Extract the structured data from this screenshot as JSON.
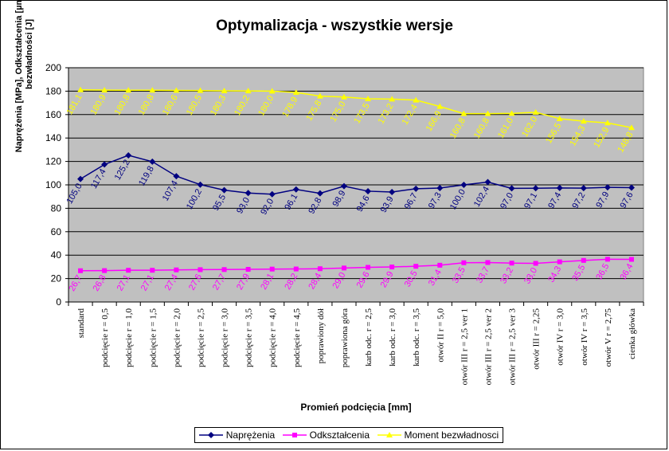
{
  "chart_data": {
    "type": "line",
    "title": "Optymalizacja - wszystkie wersje",
    "xlabel": "Promień podcięcia [mm]",
    "ylabel_lines": [
      "Naprężenia [MPa], Odkształcenia [µm], Moment",
      "bezwładności [J]"
    ],
    "ylim": [
      0,
      200
    ],
    "yticks": [
      "0",
      "20",
      "40",
      "60",
      "80",
      "100",
      "120",
      "140",
      "160",
      "180",
      "200"
    ],
    "grid": true,
    "legend_position": "bottom",
    "categories": [
      "standard",
      "podcięcie r = 0,5",
      "podcięcie r = 1,0",
      "podcięcie r = 1,5",
      "podcięcie r = 2,0",
      "podcięcie r = 2,5",
      "podcięcie r = 3,0",
      "podcięcie r = 3,5",
      "podcięcie r = 4,0",
      "podcięcie r = 4,5",
      "poprawiony dół",
      "poprawiona góra",
      "karb odc. r = 2,5",
      "karb odc. r = 3,0",
      "karb odc. r = 3,5",
      "otwór II r = 5,0",
      "otwór III r = 2,5 ver 1",
      "otwór III r = 2,5 ver 2",
      "otwór III r = 2,5 ver 3",
      "otwór III r = 2,25",
      "otwór IV r = 3,0",
      "otwór IV r = 3,5",
      "otwór V r = 2,75",
      "cienka główka"
    ],
    "series": [
      {
        "name": "Naprężenia",
        "color": "#000080",
        "marker": "diamond",
        "values": [
          105.0,
          117.4,
          125.2,
          119.8,
          107.4,
          100.2,
          95.5,
          93.0,
          92.0,
          96.1,
          92.8,
          98.9,
          94.6,
          93.9,
          96.7,
          97.3,
          100.0,
          102.4,
          97.0,
          97.1,
          97.4,
          97.2,
          97.9,
          97.6
        ],
        "labels": [
          "105,0",
          "117,4",
          "125,2",
          "119,8",
          "107,4",
          "100,2",
          "95,5",
          "93,0",
          "92,0",
          "96,1",
          "92,8",
          "98,9",
          "94,6",
          "93,9",
          "96,7",
          "97,3",
          "100,0",
          "102,4",
          "97,0",
          "97,1",
          "97,4",
          "97,2",
          "97,9",
          "97,6"
        ]
      },
      {
        "name": "Odkształcenia",
        "color": "#ff00ff",
        "marker": "square",
        "values": [
          26.7,
          26.8,
          27.1,
          27.1,
          27.4,
          27.6,
          27.7,
          27.9,
          28.1,
          28.2,
          28.4,
          29.0,
          29.6,
          29.9,
          30.5,
          31.4,
          33.5,
          33.7,
          33.2,
          33.0,
          34.3,
          35.5,
          36.5,
          36.4
        ],
        "labels": [
          "26,7",
          "26,8",
          "27,1",
          "27,1",
          "27,4",
          "27,6",
          "27,7",
          "27,9",
          "28,1",
          "28,2",
          "28,4",
          "29,0",
          "29,6",
          "29,9",
          "30,5",
          "31,4",
          "33,5",
          "33,7",
          "33,2",
          "33,0",
          "34,3",
          "35,5",
          "36,5",
          "36,4"
        ]
      },
      {
        "name": "Moment bezwładnosci",
        "color": "#ffff00",
        "marker": "triangle",
        "values": [
          181.1,
          180.9,
          180.8,
          180.8,
          180.6,
          180.5,
          180.3,
          180.2,
          180.0,
          178.9,
          175.8,
          175.0,
          173.5,
          173.2,
          172.4,
          166.9,
          160.8,
          160.8,
          161.0,
          162.0,
          156.5,
          154.3,
          152.9,
          148.8
        ],
        "labels": [
          "181,1",
          "180,9",
          "180,8",
          "180,8",
          "180,6",
          "180,5",
          "180,3",
          "180,2",
          "180,0",
          "178,9",
          "175,8",
          "175,0",
          "173,5",
          "173,2",
          "172,4",
          "166,9",
          "160,8",
          "160,8",
          "161,0",
          "162,0",
          "156,5",
          "154,3",
          "152,9",
          "148,8"
        ]
      }
    ]
  }
}
